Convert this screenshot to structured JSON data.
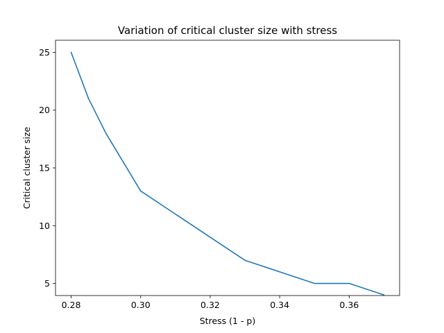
{
  "chart_data": {
    "type": "line",
    "title": "Variation of critical cluster size with stress",
    "xlabel": "Stress (1 - p)",
    "ylabel": "Critical cluster size",
    "xlim": [
      0.2755,
      0.3745
    ],
    "ylim": [
      3.95,
      26.05
    ],
    "xticks": [
      "0.28",
      "0.30",
      "0.32",
      "0.34",
      "0.36"
    ],
    "yticks": [
      "5",
      "10",
      "15",
      "20",
      "25"
    ],
    "grid": false,
    "series": [
      {
        "color": "#1f77b4",
        "x": [
          0.28,
          0.285,
          0.29,
          0.3,
          0.31,
          0.32,
          0.33,
          0.34,
          0.35,
          0.36,
          0.37
        ],
        "y": [
          25,
          21,
          18,
          13,
          11,
          9,
          7,
          6,
          5,
          5,
          4
        ]
      }
    ]
  }
}
